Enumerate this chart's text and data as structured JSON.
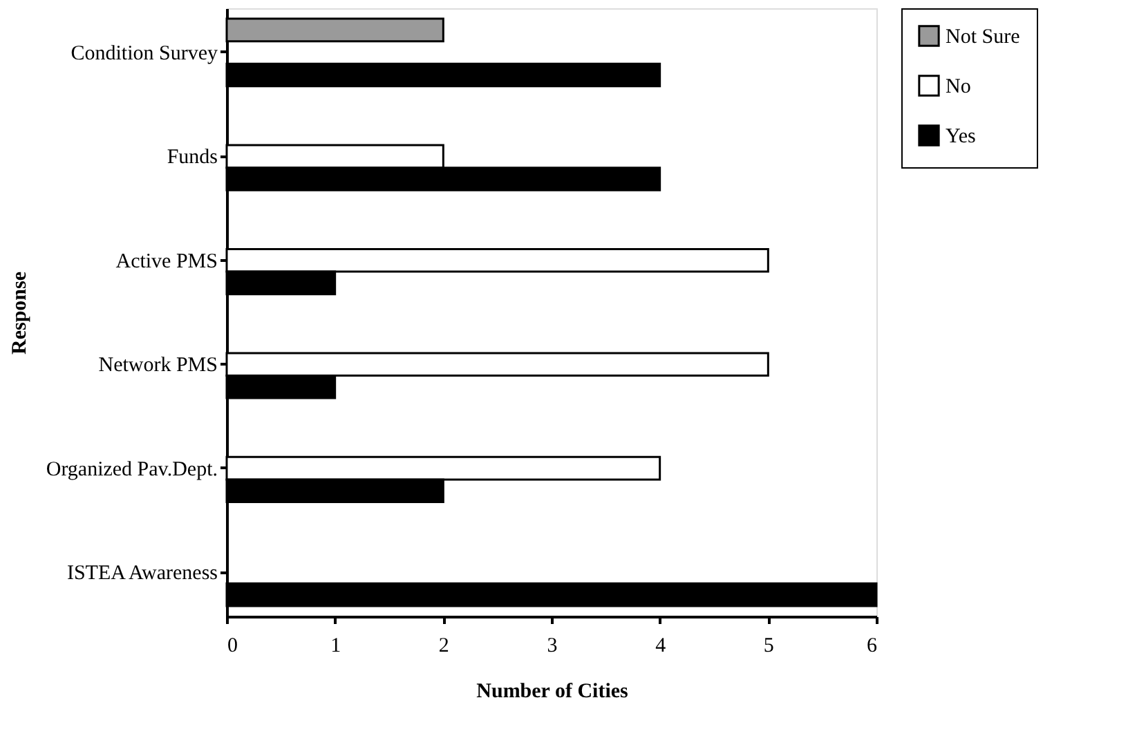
{
  "chart_data": {
    "type": "bar",
    "orientation": "horizontal",
    "xlabel": "Number of Cities",
    "ylabel": "Response",
    "categories": [
      "Condition Survey",
      "Funds",
      "Active PMS",
      "Network PMS",
      "Organized Pav.Dept.",
      "ISTEA Awareness"
    ],
    "series": [
      {
        "name": "Not Sure",
        "color": "#9a9a9a",
        "values": [
          2,
          null,
          null,
          null,
          null,
          null
        ]
      },
      {
        "name": "No",
        "color": "#ffffff",
        "values": [
          null,
          2,
          5,
          5,
          4,
          null
        ]
      },
      {
        "name": "Yes",
        "color": "#000000",
        "values": [
          4,
          4,
          1,
          1,
          2,
          6
        ]
      }
    ],
    "xlim": [
      0,
      6
    ],
    "xticks": [
      0,
      1,
      2,
      3,
      4,
      5,
      6
    ],
    "grid": false,
    "legend": "right"
  }
}
